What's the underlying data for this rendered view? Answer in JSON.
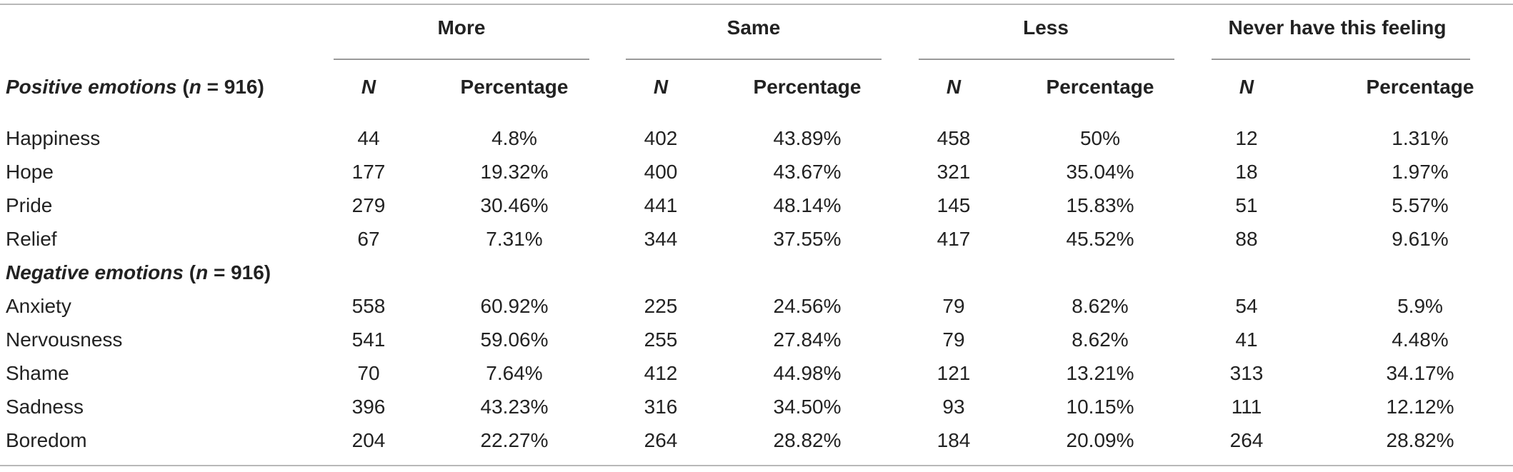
{
  "groups": [
    "More",
    "Same",
    "Less",
    "Never have this feeling"
  ],
  "subheaders": {
    "n": "N",
    "pct": "Percentage"
  },
  "sections": [
    {
      "label_main": "Positive emotions",
      "label_open": " (",
      "label_n": "n",
      "label_close": " = 916)",
      "rows": [
        {
          "label": "Happiness",
          "values": [
            "44",
            "4.8%",
            "402",
            "43.89%",
            "458",
            "50%",
            "12",
            "1.31%"
          ]
        },
        {
          "label": "Hope",
          "values": [
            "177",
            "19.32%",
            "400",
            "43.67%",
            "321",
            "35.04%",
            "18",
            "1.97%"
          ]
        },
        {
          "label": "Pride",
          "values": [
            "279",
            "30.46%",
            "441",
            "48.14%",
            "145",
            "15.83%",
            "51",
            "5.57%"
          ]
        },
        {
          "label": "Relief",
          "values": [
            "67",
            "7.31%",
            "344",
            "37.55%",
            "417",
            "45.52%",
            "88",
            "9.61%"
          ]
        }
      ]
    },
    {
      "label_main": "Negative emotions",
      "label_open": " (",
      "label_n": "n",
      "label_close": " = 916)",
      "rows": [
        {
          "label": "Anxiety",
          "values": [
            "558",
            "60.92%",
            "225",
            "24.56%",
            "79",
            "8.62%",
            "54",
            "5.9%"
          ]
        },
        {
          "label": "Nervousness",
          "values": [
            "541",
            "59.06%",
            "255",
            "27.84%",
            "79",
            "8.62%",
            "41",
            "4.48%"
          ]
        },
        {
          "label": "Shame",
          "values": [
            "70",
            "7.64%",
            "412",
            "44.98%",
            "121",
            "13.21%",
            "313",
            "34.17%"
          ]
        },
        {
          "label": "Sadness",
          "values": [
            "396",
            "43.23%",
            "316",
            "34.50%",
            "93",
            "10.15%",
            "111",
            "12.12%"
          ]
        },
        {
          "label": "Boredom",
          "values": [
            "204",
            "22.27%",
            "264",
            "28.82%",
            "184",
            "20.09%",
            "264",
            "28.82%"
          ]
        }
      ]
    }
  ]
}
